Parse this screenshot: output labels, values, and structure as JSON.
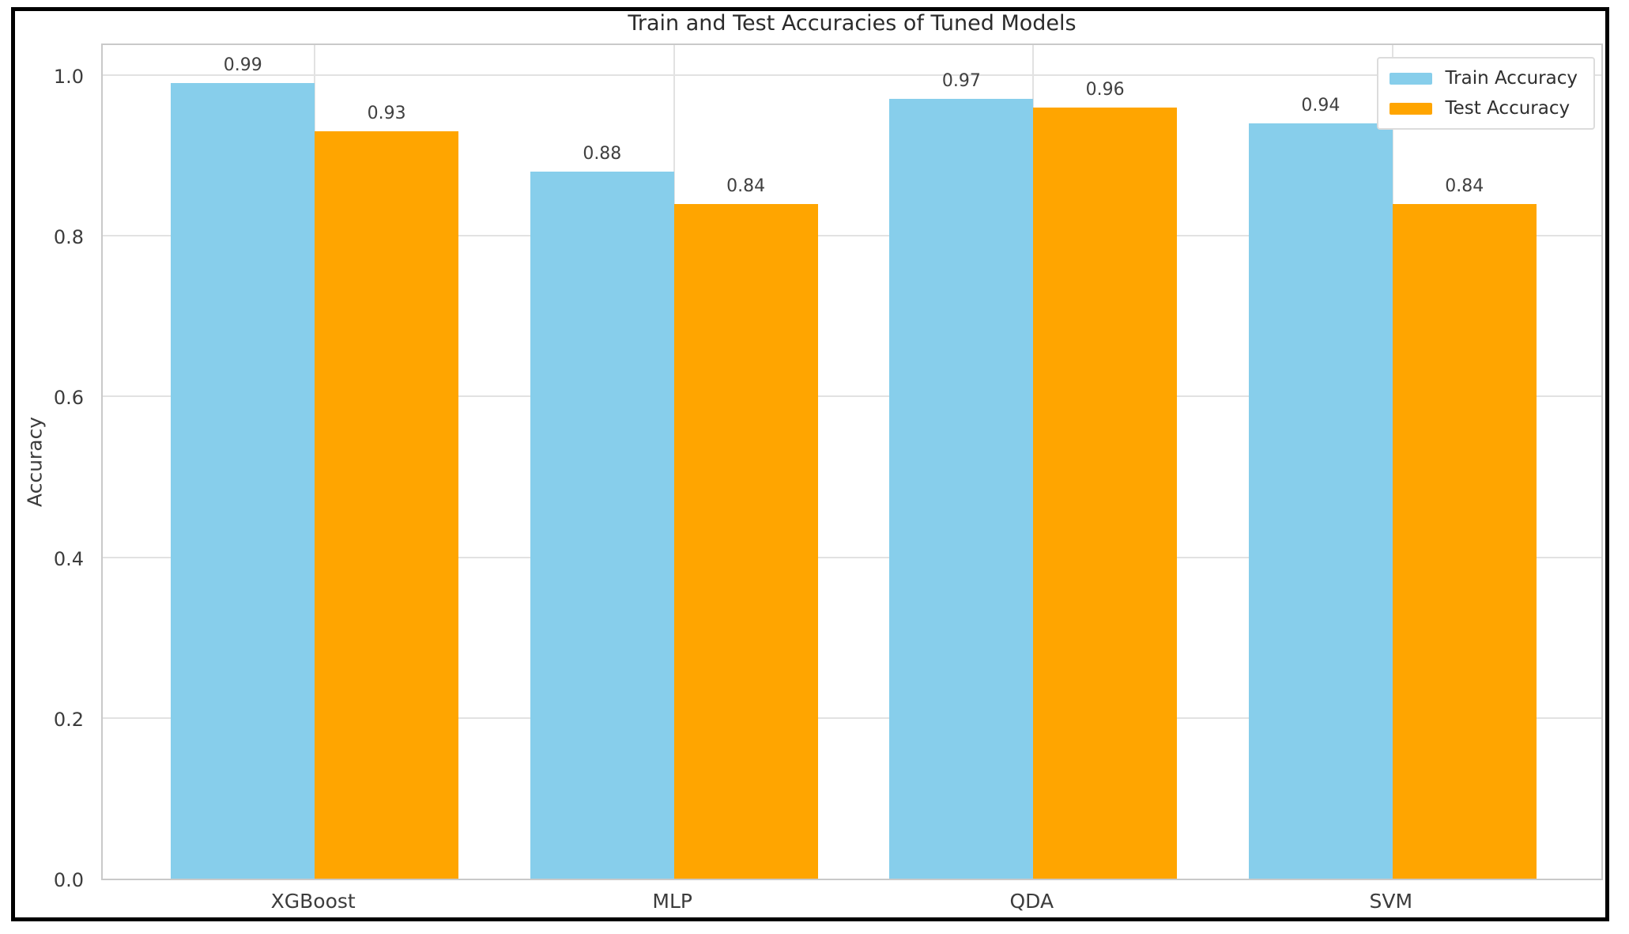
{
  "chart_data": {
    "type": "bar",
    "title": "Train and Test Accuracies of Tuned Models",
    "xlabel": "",
    "ylabel": "Accuracy",
    "categories": [
      "XGBoost",
      "MLP",
      "QDA",
      "SVM"
    ],
    "series": [
      {
        "name": "Train Accuracy",
        "color": "#87CEEB",
        "values": [
          0.99,
          0.88,
          0.97,
          0.94
        ],
        "labels": [
          "0.99",
          "0.88",
          "0.97",
          "0.94"
        ]
      },
      {
        "name": "Test Accuracy",
        "color": "#FFA500",
        "values": [
          0.93,
          0.84,
          0.96,
          0.84
        ],
        "labels": [
          "0.93",
          "0.84",
          "0.96",
          "0.84"
        ]
      }
    ],
    "ylim": [
      0,
      1.0413
    ],
    "yticks": [
      0.0,
      0.2,
      0.4,
      0.6,
      0.8,
      1.0
    ],
    "ytick_labels": [
      "0.0",
      "0.2",
      "0.4",
      "0.6",
      "0.8",
      "1.0"
    ],
    "grid": true,
    "legend_position": "upper right"
  },
  "colors": {
    "grid": "#e2e2e2",
    "spine": "#c9c9c9",
    "frame": "#000000",
    "text": "#3c3c3c"
  }
}
